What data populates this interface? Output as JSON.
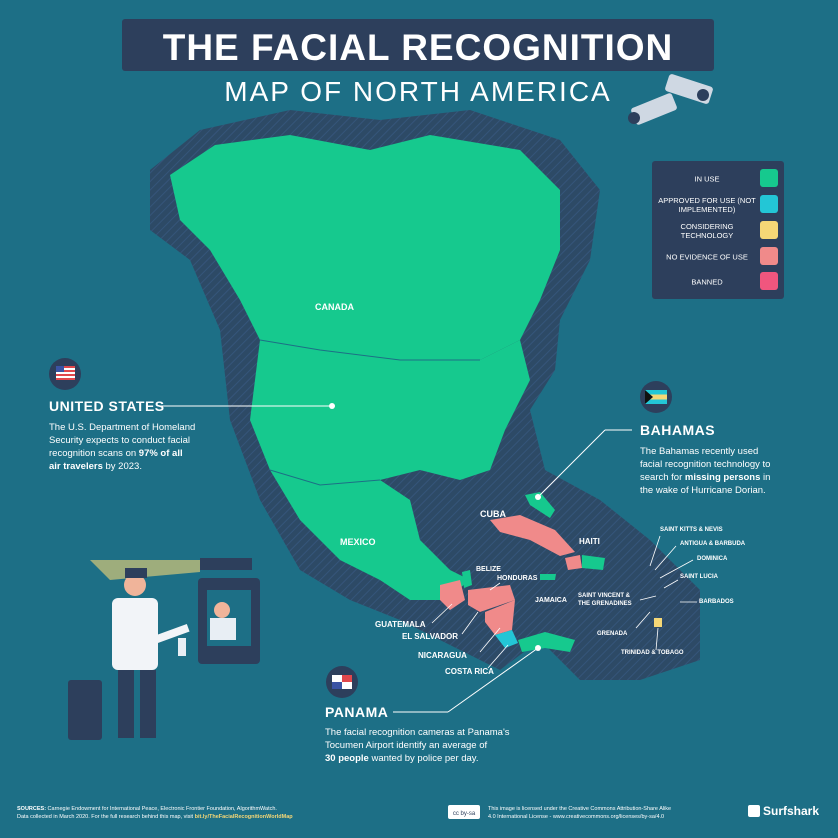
{
  "title": {
    "line1": "THE FACIAL RECOGNITION",
    "line2": "MAP OF NORTH AMERICA"
  },
  "legend": [
    {
      "label": "IN USE",
      "color": "#16c98e"
    },
    {
      "label": "APPROVED FOR USE (NOT IMPLEMENTED)",
      "color": "#23c6d6"
    },
    {
      "label": "CONSIDERING TECHNOLOGY",
      "color": "#f5d776"
    },
    {
      "label": "NO EVIDENCE OF USE",
      "color": "#f08a8a"
    },
    {
      "label": "BANNED",
      "color": "#f0567e"
    }
  ],
  "country_status": {
    "Canada": "IN USE",
    "United States": "IN USE",
    "Mexico": "IN USE",
    "Cuba": "NO EVIDENCE OF USE",
    "Haiti": "NO EVIDENCE OF USE",
    "Honduras": "NO EVIDENCE OF USE",
    "Guatemala": "NO EVIDENCE OF USE",
    "El Salvador": "NO EVIDENCE OF USE",
    "Nicaragua": "NO EVIDENCE OF USE",
    "Belize": "IN USE",
    "Costa Rica": "APPROVED FOR USE (NOT IMPLEMENTED)",
    "Panama": "IN USE",
    "Bahamas": "IN USE",
    "Jamaica": "IN USE",
    "Dominican Republic": "IN USE",
    "Trinidad & Tobago": "CONSIDERING TECHNOLOGY"
  },
  "labels": {
    "canada": "CANADA",
    "mexico": "MEXICO",
    "cuba": "CUBA",
    "haiti": "HAITI",
    "belize": "BELIZE",
    "honduras": "HONDURAS",
    "jamaica": "JAMAICA",
    "guatemala": "GUATEMALA",
    "el_salvador": "EL SALVADOR",
    "nicaragua": "NICARAGUA",
    "costa_rica": "COSTA RICA",
    "saint_kitts": "SAINT KITTS & NEVIS",
    "antigua": "ANTIGUA & BARBUDA",
    "dominica": "DOMINICA",
    "saint_lucia": "SAINT LUCIA",
    "saint_vincent_1": "SAINT VINCENT &",
    "saint_vincent_2": "THE GRENADINES",
    "barbados": "BARBADOS",
    "grenada": "GRENADA",
    "trinidad": "TRINIDAD & TOBAGO"
  },
  "callouts": {
    "us": {
      "heading": "UNITED STATES",
      "p1": "The U.S. Department of Homeland",
      "p2": "Security expects to conduct facial",
      "p3a": "recognition scans on ",
      "p3b": "97% of all",
      "p4a": "air travelers",
      "p4b": " by 2023."
    },
    "bahamas": {
      "heading": "BAHAMAS",
      "p1": "The Bahamas recently used",
      "p2": "facial recognition technology to",
      "p3a": "search for ",
      "p3b": "missing persons",
      "p3c": " in",
      "p4": "the wake of Hurricane Dorian."
    },
    "panama": {
      "heading": "PANAMA",
      "p1": "The facial recognition cameras at Panama's",
      "p2": "Tocumen Airport identify an average of",
      "p3a": "30 people",
      "p3b": " wanted by police per day."
    }
  },
  "footer": {
    "sources_label": "SOURCES:",
    "sources": " Carnegie Endowment for International Peace, Electronic Frontier Foundation, AlgorithmWatch.",
    "line2a": "Data collected in March 2020. For the full research behind this map, visit ",
    "line2b": "bit.ly/TheFacialRecognitionWorldMap",
    "license1": "This image is licensed under the Creative Commons Attribution-Share Alike",
    "license2": "4.0 International License - www.creativecommons.org/licenses/by-sa/4.0",
    "brand": "Surfshark",
    "cc_badge": "cc by-sa"
  }
}
